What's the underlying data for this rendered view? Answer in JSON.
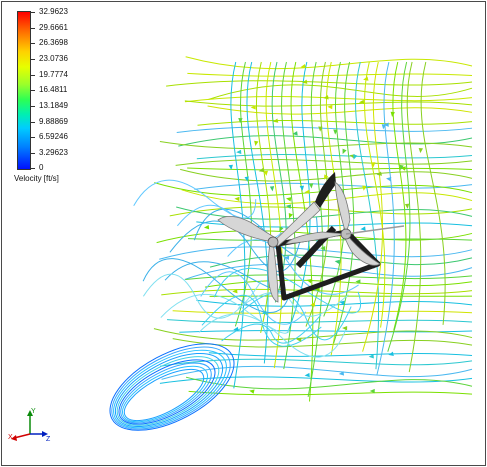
{
  "legend": {
    "ticks": [
      "32.9623",
      "29.6661",
      "26.3698",
      "23.0736",
      "19.7774",
      "16.4811",
      "13.1849",
      "9.88869",
      "6.59246",
      "3.29623",
      "0"
    ],
    "title": "Velocity [ft/s]"
  },
  "axis_triad": {
    "x": "X",
    "y": "Y",
    "z": "Z"
  },
  "colors": {
    "high": "#ff0000",
    "mid_high": "#e7ff00",
    "mid": "#2cff55",
    "mid_low": "#00ccff",
    "low": "#0010ff",
    "turbine_light": "#d8d8d8",
    "turbine_dark": "#1e1e1e"
  }
}
